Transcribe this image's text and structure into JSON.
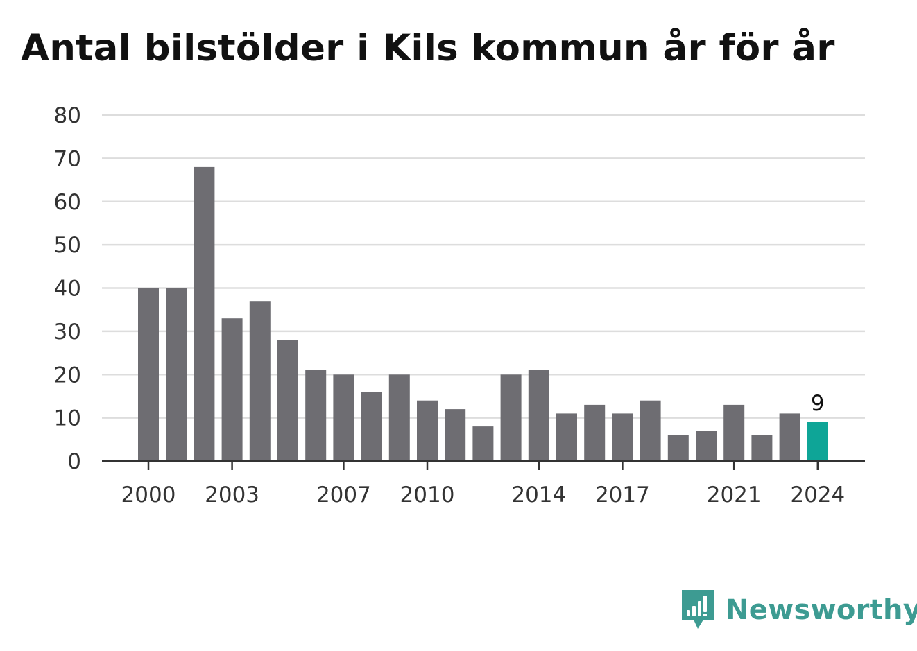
{
  "chart_data": {
    "type": "bar",
    "title": "Antal bilstölder i Kils kommun år för år",
    "xlabel": "",
    "ylabel": "",
    "categories": [
      "2000",
      "2001",
      "2002",
      "2003",
      "2004",
      "2005",
      "2006",
      "2007",
      "2008",
      "2009",
      "2010",
      "2011",
      "2012",
      "2013",
      "2014",
      "2015",
      "2016",
      "2017",
      "2018",
      "2019",
      "2020",
      "2021",
      "2022",
      "2023",
      "2024"
    ],
    "values": [
      40,
      40,
      68,
      33,
      37,
      28,
      21,
      20,
      16,
      20,
      14,
      12,
      8,
      20,
      21,
      11,
      13,
      11,
      14,
      6,
      7,
      13,
      6,
      11,
      9
    ],
    "ylim": [
      0,
      80
    ],
    "yticks": [
      0,
      10,
      20,
      30,
      40,
      50,
      60,
      70,
      80
    ],
    "xtick_labels": [
      "2000",
      "2003",
      "2007",
      "2010",
      "2014",
      "2017",
      "2021",
      "2024"
    ],
    "highlight": {
      "category": "2024",
      "value_label": "9"
    },
    "grid": true,
    "colors": {
      "bar": "#6e6d72",
      "highlight": "#0ea597",
      "grid": "#dddddd",
      "axis": "#333333"
    }
  },
  "brand": {
    "name": "Newsworthy",
    "icon": "newsworthy-logo-icon",
    "color": "#3d9b92"
  }
}
